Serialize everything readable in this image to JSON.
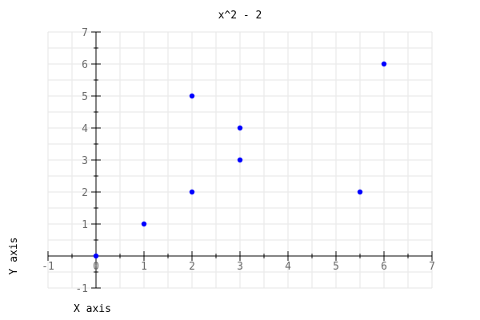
{
  "chart_data": {
    "type": "scatter",
    "title": "x^2 - 2",
    "xlabel": "X axis",
    "ylabel": "Y axis",
    "xlim": [
      -1,
      7
    ],
    "ylim": [
      -1,
      7
    ],
    "xticks": [
      -1,
      0,
      1,
      2,
      3,
      4,
      5,
      6,
      7
    ],
    "xtick_labels": [
      "-1",
      "0",
      "1",
      "2",
      "3",
      "4",
      "5",
      "6",
      "7"
    ],
    "yticks": [
      -1,
      1,
      2,
      3,
      4,
      5,
      6,
      7
    ],
    "ytick_labels": [
      "-1",
      "1",
      "2",
      "3",
      "4",
      "5",
      "6",
      "7"
    ],
    "grid": true,
    "point_color": "#0000ff",
    "x": [
      0,
      1,
      2,
      2,
      3,
      3,
      5.5,
      6
    ],
    "y": [
      0,
      1,
      2,
      5,
      3,
      4,
      2,
      6
    ]
  }
}
